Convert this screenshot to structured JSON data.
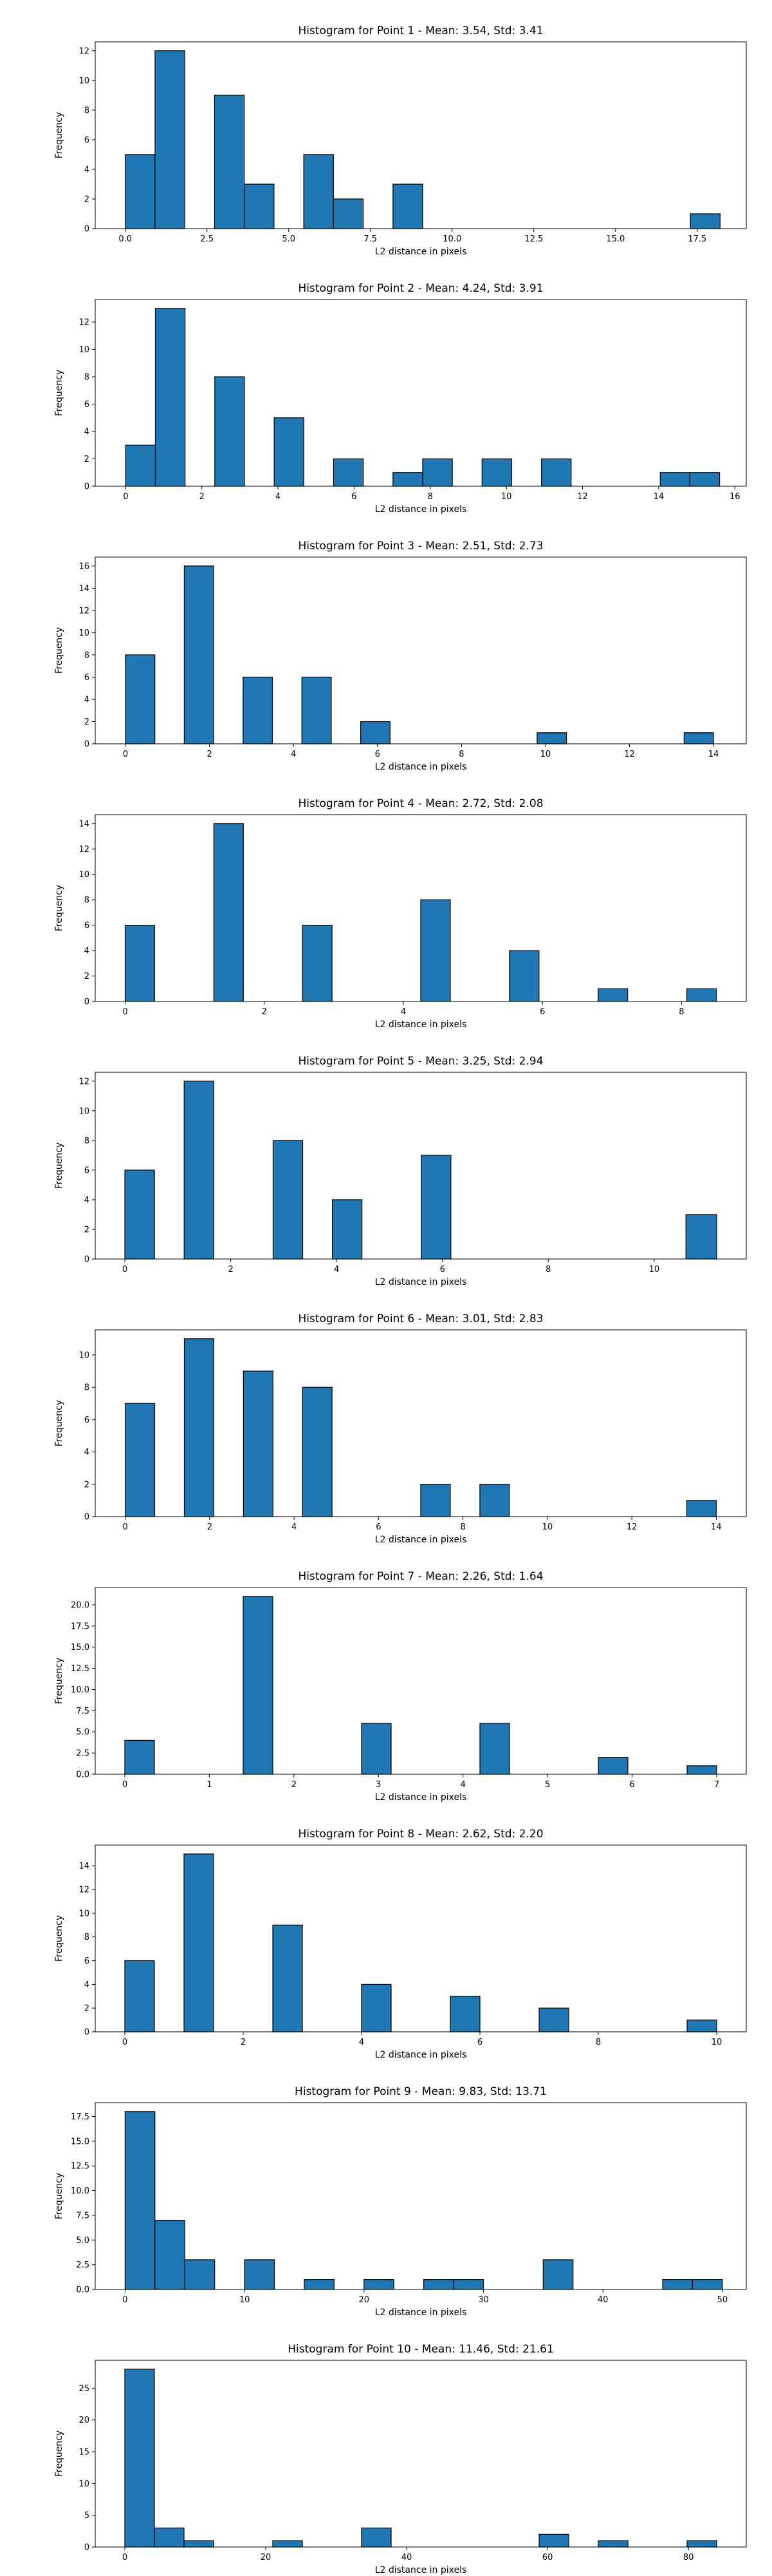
{
  "colors": {
    "bar_fill": "#1f77b4",
    "bar_edge": "#000000"
  },
  "chart_data": [
    {
      "type": "bar",
      "title": "Histogram for Point 1 - Mean: 3.54, Std: 3.41",
      "xlabel": "L2 distance in pixels",
      "ylabel": "Frequency",
      "xlim": [
        -0.92,
        19.0
      ],
      "ylim": [
        0,
        12.6
      ],
      "xticks": [
        0.0,
        2.5,
        5.0,
        7.5,
        10.0,
        12.5,
        15.0,
        17.5
      ],
      "xtick_labels": [
        "0.0",
        "2.5",
        "5.0",
        "7.5",
        "10.0",
        "12.5",
        "15.0",
        "17.5"
      ],
      "yticks": [
        0,
        2,
        4,
        6,
        8,
        10,
        12
      ],
      "ytick_labels": [
        "0",
        "2",
        "4",
        "6",
        "8",
        "10",
        "12"
      ],
      "bins": [
        [
          0.0,
          0.91,
          5
        ],
        [
          0.91,
          1.82,
          12
        ],
        [
          2.73,
          3.64,
          9
        ],
        [
          3.64,
          4.55,
          3
        ],
        [
          5.46,
          6.37,
          5
        ],
        [
          6.37,
          7.28,
          2
        ],
        [
          8.19,
          9.1,
          3
        ],
        [
          17.29,
          18.2,
          1
        ]
      ]
    },
    {
      "type": "bar",
      "title": "Histogram for Point 2 - Mean: 4.24, Std: 3.91",
      "xlabel": "L2 distance in pixels",
      "ylabel": "Frequency",
      "xlim": [
        -0.8,
        16.3
      ],
      "ylim": [
        0,
        13.65
      ],
      "xticks": [
        0,
        2,
        4,
        6,
        8,
        10,
        12,
        14,
        16
      ],
      "xtick_labels": [
        "0",
        "2",
        "4",
        "6",
        "8",
        "10",
        "12",
        "14",
        "16"
      ],
      "yticks": [
        0,
        2,
        4,
        6,
        8,
        10,
        12
      ],
      "ytick_labels": [
        "0",
        "2",
        "4",
        "6",
        "8",
        "10",
        "12"
      ],
      "bins": [
        [
          0.0,
          0.78,
          3
        ],
        [
          0.78,
          1.56,
          13
        ],
        [
          2.34,
          3.12,
          8
        ],
        [
          3.9,
          4.68,
          5
        ],
        [
          5.46,
          6.24,
          2
        ],
        [
          7.02,
          7.8,
          1
        ],
        [
          7.8,
          8.58,
          2
        ],
        [
          9.36,
          10.14,
          2
        ],
        [
          10.92,
          11.7,
          2
        ],
        [
          14.04,
          14.82,
          1
        ],
        [
          14.82,
          15.6,
          1
        ]
      ]
    },
    {
      "type": "bar",
      "title": "Histogram for Point 3 - Mean: 2.51, Std: 2.73",
      "xlabel": "L2 distance in pixels",
      "ylabel": "Frequency",
      "xlim": [
        -0.72,
        14.78
      ],
      "ylim": [
        0,
        16.8
      ],
      "xticks": [
        0,
        2,
        4,
        6,
        8,
        10,
        12,
        14
      ],
      "xtick_labels": [
        "0",
        "2",
        "4",
        "6",
        "8",
        "10",
        "12",
        "14"
      ],
      "yticks": [
        0,
        2,
        4,
        6,
        8,
        10,
        12,
        14,
        16
      ],
      "ytick_labels": [
        "0",
        "2",
        "4",
        "6",
        "8",
        "10",
        "12",
        "14",
        "16"
      ],
      "bins": [
        [
          0.0,
          0.7,
          8
        ],
        [
          1.4,
          2.1,
          16
        ],
        [
          2.8,
          3.5,
          6
        ],
        [
          4.2,
          4.9,
          6
        ],
        [
          5.6,
          6.3,
          2
        ],
        [
          9.8,
          10.5,
          1
        ],
        [
          13.3,
          14.0,
          1
        ]
      ]
    },
    {
      "type": "bar",
      "title": "Histogram for Point 4 - Mean: 2.72, Std: 2.08",
      "xlabel": "L2 distance in pixels",
      "ylabel": "Frequency",
      "xlim": [
        -0.43,
        8.93
      ],
      "ylim": [
        0,
        14.7
      ],
      "xticks": [
        0,
        2,
        4,
        6,
        8
      ],
      "xtick_labels": [
        "0",
        "2",
        "4",
        "6",
        "8"
      ],
      "yticks": [
        0,
        2,
        4,
        6,
        8,
        10,
        12,
        14
      ],
      "ytick_labels": [
        "0",
        "2",
        "4",
        "6",
        "8",
        "10",
        "12",
        "14"
      ],
      "bins": [
        [
          0.0,
          0.425,
          6
        ],
        [
          1.275,
          1.7,
          14
        ],
        [
          2.55,
          2.975,
          6
        ],
        [
          4.25,
          4.675,
          8
        ],
        [
          5.525,
          5.95,
          4
        ],
        [
          6.8,
          7.225,
          1
        ],
        [
          8.075,
          8.5,
          1
        ]
      ]
    },
    {
      "type": "bar",
      "title": "Histogram for Point 5 - Mean: 3.25, Std: 2.94",
      "xlabel": "L2 distance in pixels",
      "ylabel": "Frequency",
      "xlim": [
        -0.56,
        11.74
      ],
      "ylim": [
        0,
        12.6
      ],
      "xticks": [
        0,
        2,
        4,
        6,
        8,
        10
      ],
      "xtick_labels": [
        "0",
        "2",
        "4",
        "6",
        "8",
        "10"
      ],
      "yticks": [
        0,
        2,
        4,
        6,
        8,
        10,
        12
      ],
      "ytick_labels": [
        "0",
        "2",
        "4",
        "6",
        "8",
        "10",
        "12"
      ],
      "bins": [
        [
          0.0,
          0.56,
          6
        ],
        [
          1.12,
          1.68,
          12
        ],
        [
          2.8,
          3.36,
          8
        ],
        [
          3.92,
          4.48,
          4
        ],
        [
          5.6,
          6.16,
          7
        ],
        [
          10.6,
          11.18,
          3
        ]
      ]
    },
    {
      "type": "bar",
      "title": "Histogram for Point 6 - Mean: 3.01, Std: 2.83",
      "xlabel": "L2 distance in pixels",
      "ylabel": "Frequency",
      "xlim": [
        -0.71,
        14.71
      ],
      "ylim": [
        0,
        11.55
      ],
      "xticks": [
        0,
        2,
        4,
        6,
        8,
        10,
        12,
        14
      ],
      "xtick_labels": [
        "0",
        "2",
        "4",
        "6",
        "8",
        "10",
        "12",
        "14"
      ],
      "yticks": [
        0,
        2,
        4,
        6,
        8,
        10
      ],
      "ytick_labels": [
        "0",
        "2",
        "4",
        "6",
        "8",
        "10"
      ],
      "bins": [
        [
          0.0,
          0.7,
          7
        ],
        [
          1.4,
          2.1,
          11
        ],
        [
          2.8,
          3.5,
          9
        ],
        [
          4.2,
          4.9,
          8
        ],
        [
          7.0,
          7.7,
          2
        ],
        [
          8.4,
          9.1,
          2
        ],
        [
          13.3,
          14.0,
          1
        ]
      ]
    },
    {
      "type": "bar",
      "title": "Histogram for Point 7 - Mean: 2.26, Std: 1.64",
      "xlabel": "L2 distance in pixels",
      "ylabel": "Frequency",
      "xlim": [
        -0.35,
        7.35
      ],
      "ylim": [
        0,
        22.05
      ],
      "xticks": [
        0,
        1,
        2,
        3,
        4,
        5,
        6,
        7
      ],
      "xtick_labels": [
        "0",
        "1",
        "2",
        "3",
        "4",
        "5",
        "6",
        "7"
      ],
      "yticks": [
        0.0,
        2.5,
        5.0,
        7.5,
        10.0,
        12.5,
        15.0,
        17.5,
        20.0
      ],
      "ytick_labels": [
        "0.0",
        "2.5",
        "5.0",
        "7.5",
        "10.0",
        "12.5",
        "15.0",
        "17.5",
        "20.0"
      ],
      "bins": [
        [
          0.0,
          0.35,
          4
        ],
        [
          1.4,
          1.75,
          21
        ],
        [
          2.8,
          3.15,
          6
        ],
        [
          4.2,
          4.55,
          6
        ],
        [
          5.6,
          5.95,
          2
        ],
        [
          6.65,
          7.0,
          1
        ]
      ]
    },
    {
      "type": "bar",
      "title": "Histogram for Point 8 - Mean: 2.62, Std: 2.20",
      "xlabel": "L2 distance in pixels",
      "ylabel": "Frequency",
      "xlim": [
        -0.5,
        10.5
      ],
      "ylim": [
        0,
        15.75
      ],
      "xticks": [
        0,
        2,
        4,
        6,
        8,
        10
      ],
      "xtick_labels": [
        "0",
        "2",
        "4",
        "6",
        "8",
        "10"
      ],
      "yticks": [
        0,
        2,
        4,
        6,
        8,
        10,
        12,
        14
      ],
      "ytick_labels": [
        "0",
        "2",
        "4",
        "6",
        "8",
        "10",
        "12",
        "14"
      ],
      "bins": [
        [
          0.0,
          0.5,
          6
        ],
        [
          1.0,
          1.5,
          15
        ],
        [
          2.5,
          3.0,
          9
        ],
        [
          4.0,
          4.5,
          4
        ],
        [
          5.5,
          6.0,
          3
        ],
        [
          7.0,
          7.5,
          2
        ],
        [
          9.5,
          10.0,
          1
        ]
      ]
    },
    {
      "type": "bar",
      "title": "Histogram for Point 9 - Mean: 9.83, Std: 13.71",
      "xlabel": "L2 distance in pixels",
      "ylabel": "Frequency",
      "xlim": [
        -2.5,
        52.0
      ],
      "ylim": [
        0,
        18.9
      ],
      "xticks": [
        0,
        10,
        20,
        30,
        40,
        50
      ],
      "xtick_labels": [
        "0",
        "10",
        "20",
        "30",
        "40",
        "50"
      ],
      "yticks": [
        0.0,
        2.5,
        5.0,
        7.5,
        10.0,
        12.5,
        15.0,
        17.5
      ],
      "ytick_labels": [
        "0.0",
        "2.5",
        "5.0",
        "7.5",
        "10.0",
        "12.5",
        "15.0",
        "17.5"
      ],
      "bins": [
        [
          0.0,
          2.5,
          18
        ],
        [
          2.5,
          5.0,
          7
        ],
        [
          5.0,
          7.5,
          3
        ],
        [
          10.0,
          12.5,
          3
        ],
        [
          15.0,
          17.5,
          1
        ],
        [
          20.0,
          22.5,
          1
        ],
        [
          25.0,
          27.5,
          1
        ],
        [
          27.5,
          30.0,
          1
        ],
        [
          35.0,
          37.5,
          3
        ],
        [
          45.0,
          47.5,
          1
        ],
        [
          47.5,
          50.0,
          1
        ]
      ]
    },
    {
      "type": "bar",
      "title": "Histogram for Point 10 - Mean: 11.46, Std: 21.61",
      "xlabel": "L2 distance in pixels",
      "ylabel": "Frequency",
      "xlim": [
        -4.2,
        88.2
      ],
      "ylim": [
        0,
        29.4
      ],
      "xticks": [
        0,
        20,
        40,
        60,
        80
      ],
      "xtick_labels": [
        "0",
        "20",
        "40",
        "60",
        "80"
      ],
      "yticks": [
        0,
        5,
        10,
        15,
        20,
        25
      ],
      "ytick_labels": [
        "0",
        "5",
        "10",
        "15",
        "20",
        "25"
      ],
      "bins": [
        [
          0.0,
          4.2,
          28
        ],
        [
          4.2,
          8.4,
          3
        ],
        [
          8.4,
          12.6,
          1
        ],
        [
          21.0,
          25.2,
          1
        ],
        [
          33.6,
          37.8,
          3
        ],
        [
          58.8,
          63.0,
          2
        ],
        [
          67.2,
          71.4,
          1
        ],
        [
          79.8,
          84.0,
          1
        ]
      ]
    }
  ]
}
